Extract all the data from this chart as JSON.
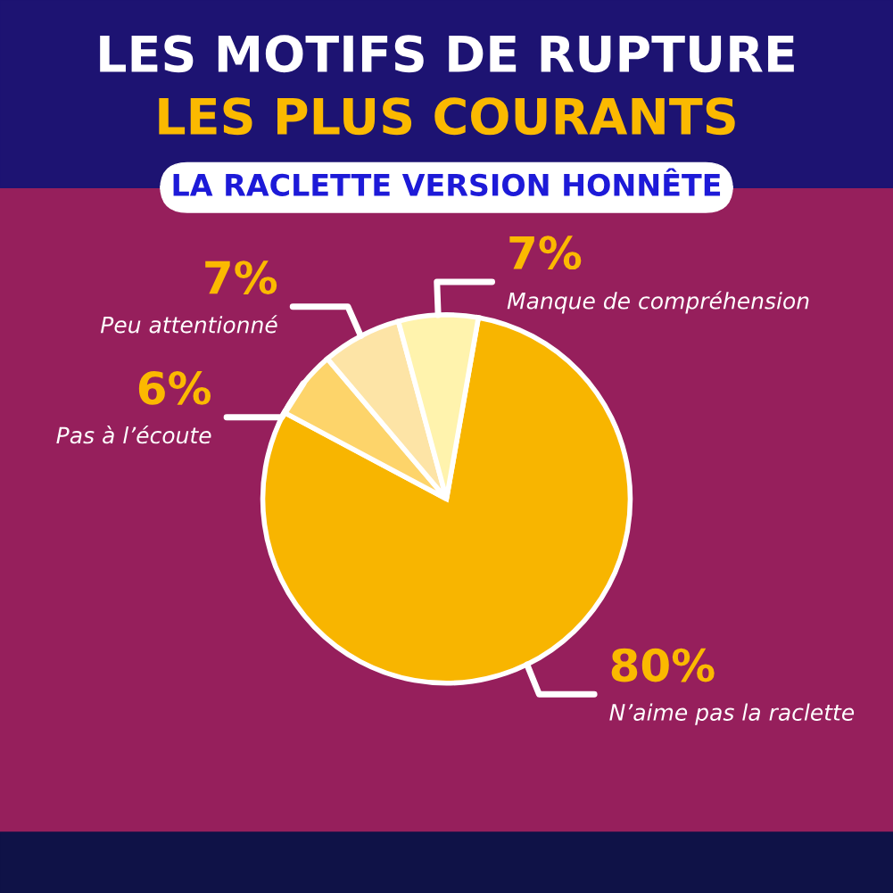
{
  "chart_data": {
    "type": "pie",
    "title": "LES MOTIFS DE RUPTURE\nLES PLUS COURANTS",
    "subtitle": "LA RACLETTE VERSION HONNÊTE",
    "categories": [
      "N’aime pas la raclette",
      "Pas à l’écoute",
      "Peu attentionné",
      "Manque de compréhension"
    ],
    "values": [
      80,
      6,
      7,
      7
    ],
    "colors": [
      "#f8b500",
      "#fdd46a",
      "#fde4a6",
      "#fff3ad"
    ],
    "value_labels": [
      "80%",
      "6%",
      "7%",
      "7%"
    ]
  }
}
